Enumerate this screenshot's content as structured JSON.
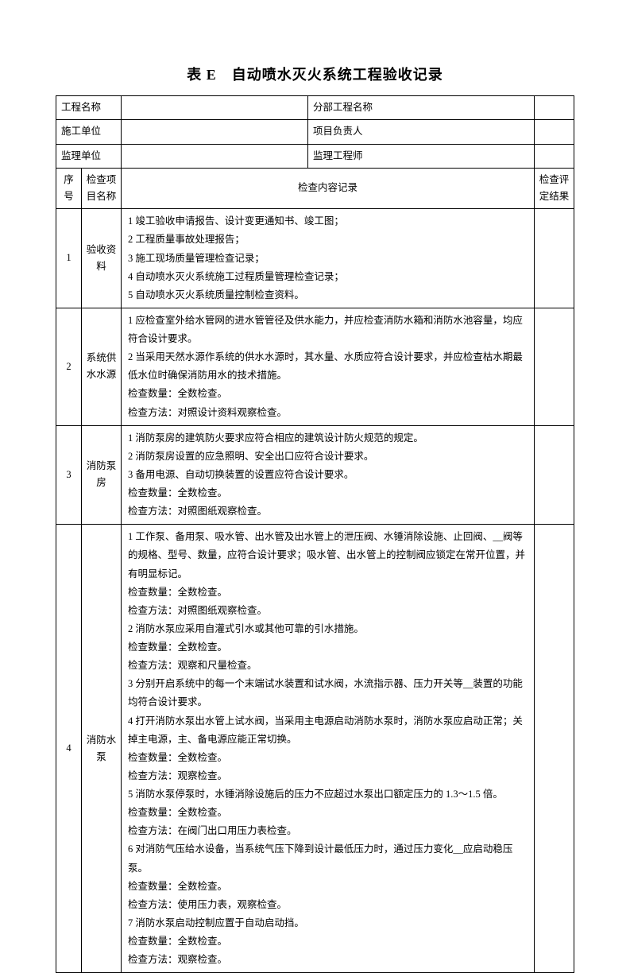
{
  "title": "表 E　自动喷水灭火系统工程验收记录",
  "header_rows": [
    {
      "left_label": "工程名称",
      "right_label": "分部工程名称"
    },
    {
      "left_label": "施工单位",
      "right_label": "项目负责人"
    },
    {
      "left_label": "监理单位",
      "right_label": "监理工程师"
    }
  ],
  "col_headers": {
    "seq": "序号",
    "item": "检查项目名称",
    "content": "检查内容记录",
    "result": "检查评定结果"
  },
  "rows": [
    {
      "seq": "1",
      "item": "验收资料",
      "content": "1 竣工验收申请报告、设计变更通知书、竣工图；\n2 工程质量事故处理报告；\n3 施工现场质量管理检查记录；\n4 自动喷水灭火系统施工过程质量管理检查记录；\n5 自动喷水灭火系统质量控制检查资料。"
    },
    {
      "seq": "2",
      "item": "系统供水水源",
      "content": "1 应检查室外给水管网的进水管管径及供水能力，并应检查消防水箱和消防水池容量，均应符合设计要求。\n2 当采用天然水源作系统的供水水源时，其水量、水质应符合设计要求，并应检查枯水期最低水位时确保消防用水的技术措施。\n检查数量：全数检查。\n检查方法：对照设计资料观察检查。"
    },
    {
      "seq": "3",
      "item": "消防泵房",
      "content": "1 消防泵房的建筑防火要求应符合相应的建筑设计防火规范的规定。\n2 消防泵房设置的应急照明、安全出口应符合设计要求。\n3 备用电源、自动切换装置的设置应符合设计要求。\n检查数量：全数检查。\n检查方法：对照图纸观察检查。"
    },
    {
      "seq": "4",
      "item": "消防水泵",
      "content": "1 工作泵、备用泵、吸水管、出水管及出水管上的泄压阀、水锤消除设施、止回阀、__阀等的规格、型号、数量，应符合设计要求；吸水管、出水管上的控制阀应锁定在常开位置，并有明显标记。\n检查数量：全数检查。\n检查方法：对照图纸观察检查。\n2 消防水泵应采用自灌式引水或其他可靠的引水措施。\n检查数量：全数检查。\n检查方法：观察和尺量检查。\n3 分别开启系统中的每一个末端试水装置和试水阀，水流指示器、压力开关等__装置的功能均符合设计要求。\n4 打开消防水泵出水管上试水阀，当采用主电源启动消防水泵时，消防水泵应启动正常；关掉主电源，主、备电源应能正常切换。\n检查数量：全数检查。\n检查方法：观察检查。\n5 消防水泵停泵时，水锤消除设施后的压力不应超过水泵出口额定压力的 1.3～1.5 倍。\n检查数量：全数检查。\n检查方法：在阀门出口用压力表检查。\n6 对消防气压给水设备，当系统气压下降到设计最低压力时，通过压力变化__应启动稳压泵。\n检查数量：全数检查。\n检查方法：使用压力表，观察检查。\n7 消防水泵启动控制应置于自动启动挡。\n检查数量：全数检查。\n检查方法：观察检查。"
    }
  ]
}
